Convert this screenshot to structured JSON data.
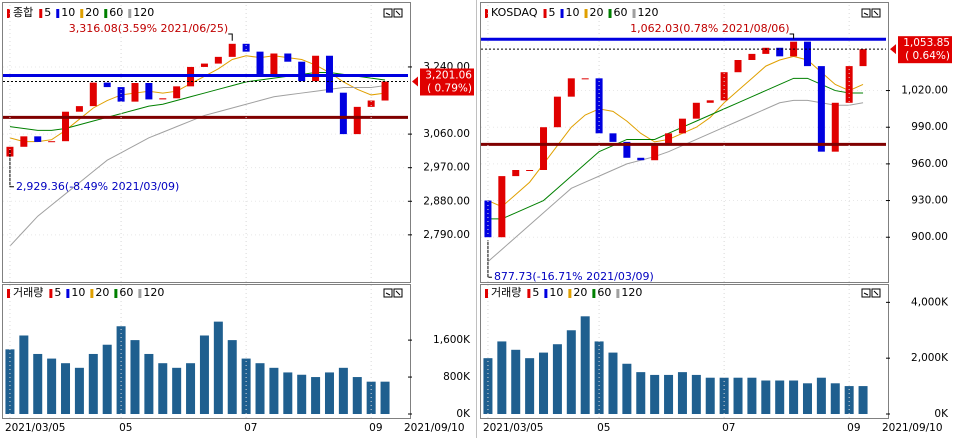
{
  "chart_data": [
    {
      "type": "candlestick",
      "title": "종합",
      "ma": [
        {
          "name": "5",
          "color": "#e00000"
        },
        {
          "name": "10",
          "color": "#0000e0"
        },
        {
          "name": "20",
          "color": "#e0a000",
          "values": [
            3050,
            3040,
            3040,
            3045,
            3070,
            3100,
            3130,
            3150,
            3165,
            3170,
            3175,
            3170,
            3175,
            3195,
            3215,
            3235,
            3260,
            3270,
            3265,
            3270,
            3265,
            3260,
            3245,
            3225,
            3200,
            3180,
            3165,
            3170
          ]
        },
        {
          "name": "60",
          "color": "#008000",
          "values": [
            3080,
            3075,
            3070,
            3070,
            3075,
            3085,
            3095,
            3105,
            3115,
            3125,
            3135,
            3140,
            3150,
            3160,
            3170,
            3180,
            3190,
            3200,
            3205,
            3210,
            3215,
            3220,
            3225,
            3225,
            3220,
            3215,
            3210,
            3205
          ]
        },
        {
          "name": "120",
          "color": "#a0a0a0",
          "values": [
            2760,
            2800,
            2840,
            2870,
            2900,
            2930,
            2960,
            2990,
            3010,
            3030,
            3050,
            3065,
            3080,
            3095,
            3110,
            3120,
            3130,
            3140,
            3150,
            3160,
            3165,
            3170,
            3175,
            3180,
            3185,
            3185,
            3185,
            3190
          ]
        }
      ],
      "open": [
        3000,
        3026,
        3054,
        3039,
        3041,
        3120,
        3135,
        3198,
        3186,
        3147,
        3197,
        3153,
        3156,
        3188,
        3240,
        3249,
        3267,
        3302,
        3281,
        3217,
        3276,
        3254,
        3202,
        3270,
        3171,
        3060,
        3133,
        3150
      ],
      "close": [
        3026,
        3054,
        3039,
        3041,
        3120,
        3135,
        3198,
        3186,
        3147,
        3197,
        3153,
        3156,
        3188,
        3240,
        3249,
        3267,
        3302,
        3281,
        3217,
        3276,
        3254,
        3202,
        3270,
        3171,
        3060,
        3133,
        3150,
        3201
      ],
      "ylim": [
        2669,
        3406
      ],
      "yticks": [
        {
          "value": 3240,
          "label": "3,240.00"
        },
        {
          "value": 3060,
          "label": "3,060.00"
        },
        {
          "value": 2970,
          "label": "2,970.00"
        },
        {
          "value": 2880,
          "label": "2,880.00"
        },
        {
          "value": 2790,
          "label": "2,790.00"
        }
      ],
      "hlines": [
        {
          "value": 3217,
          "color": "#0000e0"
        },
        {
          "value": 3105,
          "color": "#800000"
        }
      ],
      "high_annotation": "3,316.08(3.59% 2021/06/25)",
      "low_annotation": "2,929.36(-8.49% 2021/03/09)",
      "price_label": "3,201.06",
      "change_label": "( 0.79%)"
    },
    {
      "type": "bar",
      "title": "거래량",
      "categories": [
        "2021/03/05",
        null,
        null,
        null,
        null,
        null,
        null,
        null,
        "05",
        null,
        null,
        null,
        null,
        null,
        null,
        null,
        null,
        "07",
        null,
        null,
        null,
        null,
        null,
        null,
        null,
        null,
        "09",
        null
      ],
      "end_label": "2021/09/10",
      "values": [
        1400,
        1700,
        1300,
        1200,
        1100,
        1000,
        1300,
        1500,
        1900,
        1600,
        1300,
        1100,
        1000,
        1100,
        1700,
        2000,
        1600,
        1200,
        1100,
        1000,
        900,
        850,
        800,
        900,
        1000,
        800,
        700,
        700
      ],
      "color": "#1f5f8f",
      "ylim": [
        0,
        2750
      ],
      "yticks": [
        {
          "value": 1600,
          "label": "1,600K"
        },
        {
          "value": 800,
          "label": "800K"
        },
        {
          "value": 0,
          "label": "0K"
        }
      ]
    },
    {
      "type": "candlestick",
      "title": "KOSDAQ",
      "ma": [
        {
          "name": "5",
          "color": "#e00000"
        },
        {
          "name": "10",
          "color": "#0000e0"
        },
        {
          "name": "20",
          "color": "#e0a000",
          "values": [
            930,
            925,
            935,
            945,
            960,
            975,
            990,
            1000,
            1005,
            1003,
            995,
            985,
            978,
            980,
            985,
            990,
            998,
            1010,
            1020,
            1030,
            1040,
            1045,
            1048,
            1045,
            1035,
            1025,
            1020,
            1025
          ]
        },
        {
          "name": "60",
          "color": "#008000",
          "values": [
            915,
            915,
            920,
            925,
            930,
            940,
            950,
            960,
            970,
            975,
            980,
            980,
            980,
            985,
            990,
            995,
            1000,
            1005,
            1010,
            1015,
            1020,
            1025,
            1030,
            1030,
            1025,
            1020,
            1018,
            1018
          ]
        },
        {
          "name": "120",
          "color": "#a0a0a0",
          "values": [
            880,
            890,
            900,
            910,
            920,
            930,
            940,
            945,
            950,
            955,
            960,
            963,
            966,
            970,
            975,
            980,
            985,
            990,
            995,
            1000,
            1005,
            1010,
            1012,
            1012,
            1010,
            1008,
            1008,
            1010
          ]
        }
      ],
      "open": [
        930,
        900,
        950,
        955,
        955,
        990,
        1015,
        1030,
        1030,
        985,
        978,
        965,
        963,
        975,
        985,
        997,
        1010,
        1012,
        1035,
        1045,
        1050,
        1055,
        1048,
        1060,
        1040,
        970,
        1010,
        1040
      ],
      "close": [
        900,
        950,
        955,
        955,
        990,
        1015,
        1030,
        1030,
        985,
        978,
        965,
        963,
        975,
        985,
        997,
        1010,
        1012,
        1035,
        1045,
        1050,
        1055,
        1048,
        1060,
        1040,
        970,
        1010,
        1040,
        1053.85
      ],
      "ylim": [
        865,
        1090
      ],
      "yticks": [
        {
          "value": 1020,
          "label": "1,020.00"
        },
        {
          "value": 990,
          "label": "990.00"
        },
        {
          "value": 960,
          "label": "960.00"
        },
        {
          "value": 930,
          "label": "930.00"
        },
        {
          "value": 900,
          "label": "900.00"
        }
      ],
      "hlines": [
        {
          "value": 1062,
          "color": "#0000e0"
        },
        {
          "value": 976,
          "color": "#800000"
        }
      ],
      "high_annotation": "1,062.03(0.78% 2021/08/06)",
      "low_annotation": "877.73(-16.71% 2021/03/09)",
      "price_label": "1,053.85",
      "change_label": "( 0.64%)"
    },
    {
      "type": "bar",
      "title": "거래량",
      "categories": [
        "2021/03/05",
        null,
        null,
        null,
        null,
        null,
        null,
        null,
        "05",
        null,
        null,
        null,
        null,
        null,
        null,
        null,
        null,
        "07",
        null,
        null,
        null,
        null,
        null,
        null,
        null,
        null,
        "09",
        null
      ],
      "end_label": "2021/09/10",
      "values": [
        2000,
        2600,
        2300,
        2000,
        2200,
        2500,
        3000,
        3500,
        2600,
        2200,
        1800,
        1500,
        1400,
        1400,
        1500,
        1400,
        1300,
        1300,
        1300,
        1300,
        1200,
        1200,
        1200,
        1100,
        1300,
        1100,
        1000,
        1000
      ],
      "color": "#1f5f8f",
      "ylim": [
        0,
        4550
      ],
      "yticks": [
        {
          "value": 4000,
          "label": "4,000K"
        },
        {
          "value": 2000,
          "label": "2,000K"
        },
        {
          "value": 0,
          "label": "0K"
        }
      ]
    }
  ]
}
